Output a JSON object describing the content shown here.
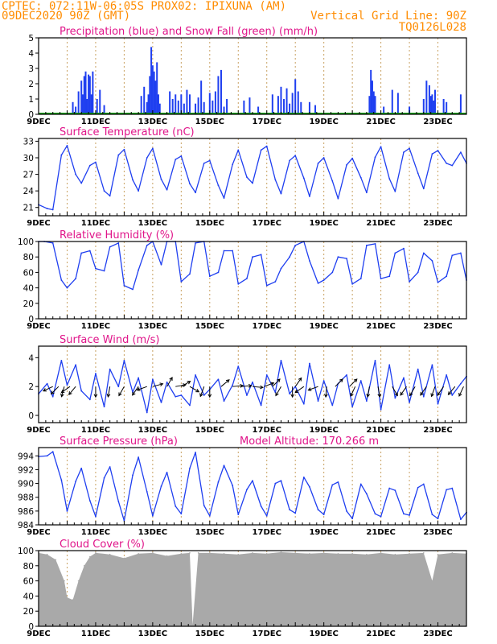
{
  "header": {
    "line1": "CPTEC:   072:11W-06:05S   PROX02: IPIXUNA (AM)",
    "line2_left": "09DEC2020 90Z (GMT)",
    "line2_right": "Vertical Grid Line: 90Z",
    "line3_right": "TQ0126L028"
  },
  "colors": {
    "header": "#ff8c00",
    "title": "#e0158a",
    "series_line": "#1f3ff0",
    "precip_bar": "#1f3ff0",
    "snow_line": "#00a000",
    "cloud_fill": "#a9a9a9",
    "grid": "#c8a060"
  },
  "chart_data": [
    {
      "id": "precip",
      "type": "bar",
      "title": "Precipitation (blue) and Snow Fall (green) (mm/h)",
      "x_labels": [
        "9DEC",
        "11DEC",
        "13DEC",
        "15DEC",
        "17DEC",
        "19DEC",
        "21DEC",
        "23DEC"
      ],
      "ylim": [
        0,
        5
      ],
      "yticks": [
        0,
        1,
        2,
        3,
        4,
        5
      ],
      "days": [
        9,
        24
      ],
      "series": [
        {
          "name": "Precipitation",
          "x": [
            10.2,
            10.3,
            10.4,
            10.5,
            10.55,
            10.6,
            10.65,
            10.7,
            10.75,
            10.8,
            10.85,
            10.9,
            11.05,
            11.15,
            11.3,
            12.6,
            12.7,
            12.8,
            12.85,
            12.9,
            12.95,
            13.0,
            13.05,
            13.1,
            13.15,
            13.2,
            13.25,
            13.6,
            13.7,
            13.8,
            13.9,
            14.0,
            14.1,
            14.2,
            14.3,
            14.5,
            14.6,
            14.7,
            14.8,
            15.0,
            15.1,
            15.2,
            15.3,
            15.4,
            15.5,
            15.6,
            16.2,
            16.4,
            16.7,
            17.2,
            17.4,
            17.5,
            17.6,
            17.7,
            17.8,
            17.9,
            18.0,
            18.1,
            18.2,
            18.5,
            18.7,
            20.6,
            20.65,
            20.7,
            20.75,
            20.8,
            21.1,
            21.4,
            21.6,
            22.0,
            22.5,
            22.6,
            22.7,
            22.75,
            22.8,
            22.85,
            22.9,
            23.2,
            23.3,
            23.8
          ],
          "values": [
            0.8,
            0.5,
            1.5,
            2.2,
            1.3,
            2.5,
            2.8,
            1.0,
            2.6,
            2.5,
            1.3,
            2.8,
            1.0,
            1.6,
            0.6,
            1.2,
            1.8,
            0.8,
            1.3,
            2.5,
            4.4,
            3.2,
            2.8,
            2.2,
            3.4,
            1.3,
            0.7,
            1.5,
            1.0,
            1.3,
            0.9,
            1.3,
            0.7,
            1.6,
            1.3,
            0.7,
            1.1,
            2.2,
            0.8,
            1.4,
            0.9,
            1.5,
            2.5,
            2.9,
            0.5,
            1.0,
            0.9,
            1.1,
            0.5,
            1.3,
            1.2,
            1.8,
            1.0,
            1.7,
            0.7,
            1.4,
            2.3,
            1.5,
            0.8,
            0.8,
            0.6,
            1.2,
            2.9,
            2.2,
            1.5,
            1.2,
            0.5,
            1.6,
            1.4,
            0.5,
            1.0,
            2.2,
            1.9,
            1.2,
            1.3,
            0.9,
            1.6,
            1.0,
            0.8,
            1.3
          ]
        },
        {
          "name": "Snow Fall",
          "x": [
            9,
            24
          ],
          "values": [
            0,
            0
          ]
        }
      ]
    },
    {
      "id": "temp",
      "type": "line",
      "title": "Surface Temperature (nC)",
      "x_labels": [
        "9DEC",
        "11DEC",
        "13DEC",
        "15DEC",
        "17DEC",
        "19DEC",
        "21DEC",
        "23DEC"
      ],
      "ylim": [
        19.5,
        33.5
      ],
      "yticks": [
        21,
        24,
        27,
        30,
        33
      ],
      "days": [
        9,
        24
      ],
      "x": [
        9.0,
        9.3,
        9.5,
        9.8,
        10.0,
        10.3,
        10.5,
        10.8,
        11.0,
        11.3,
        11.5,
        11.8,
        12.0,
        12.3,
        12.5,
        12.8,
        13.0,
        13.3,
        13.5,
        13.8,
        14.0,
        14.3,
        14.5,
        14.8,
        15.0,
        15.3,
        15.5,
        15.8,
        16.0,
        16.3,
        16.5,
        16.8,
        17.0,
        17.3,
        17.5,
        17.8,
        18.0,
        18.3,
        18.5,
        18.8,
        19.0,
        19.3,
        19.5,
        19.8,
        20.0,
        20.3,
        20.5,
        20.8,
        21.0,
        21.3,
        21.5,
        21.8,
        22.0,
        22.3,
        22.5,
        22.8,
        23.0,
        23.3,
        23.5,
        23.8,
        24.0
      ],
      "values": [
        21.5,
        20.8,
        20.6,
        30.5,
        32.2,
        27.0,
        25.4,
        28.6,
        29.2,
        24.0,
        23.1,
        30.5,
        31.5,
        26.0,
        24.0,
        30.0,
        31.7,
        26.1,
        24.2,
        29.7,
        30.3,
        25.3,
        23.7,
        29.0,
        29.5,
        25.0,
        22.7,
        28.8,
        31.4,
        26.5,
        25.4,
        31.4,
        32.1,
        26.0,
        23.5,
        29.5,
        30.4,
        26.3,
        23.0,
        29.0,
        30.0,
        25.8,
        22.6,
        28.7,
        29.9,
        26.4,
        23.7,
        30.1,
        32.0,
        26.2,
        23.9,
        31.0,
        31.7,
        27.2,
        24.4,
        30.7,
        31.3,
        29.0,
        28.6,
        31.0,
        29.0
      ]
    },
    {
      "id": "rh",
      "type": "line",
      "title": "Relative Humidity (%)",
      "x_labels": [
        "9DEC",
        "11DEC",
        "13DEC",
        "15DEC",
        "17DEC",
        "19DEC",
        "21DEC",
        "23DEC"
      ],
      "ylim": [
        0,
        100
      ],
      "yticks": [
        0,
        20,
        40,
        60,
        80,
        100
      ],
      "days": [
        9,
        24
      ],
      "x": [
        9.0,
        9.2,
        9.5,
        9.8,
        10.0,
        10.3,
        10.5,
        10.8,
        11.0,
        11.3,
        11.5,
        11.8,
        12.0,
        12.3,
        12.5,
        12.8,
        13.0,
        13.3,
        13.5,
        13.8,
        14.0,
        14.3,
        14.5,
        14.8,
        15.0,
        15.3,
        15.5,
        15.8,
        16.0,
        16.3,
        16.5,
        16.8,
        17.0,
        17.3,
        17.5,
        17.8,
        18.0,
        18.3,
        18.5,
        18.8,
        19.0,
        19.3,
        19.5,
        19.8,
        20.0,
        20.3,
        20.5,
        20.8,
        21.0,
        21.3,
        21.5,
        21.8,
        22.0,
        22.3,
        22.5,
        22.8,
        23.0,
        23.3,
        23.5,
        23.8,
        24.0
      ],
      "values": [
        100,
        100,
        98,
        50,
        40,
        52,
        85,
        88,
        65,
        62,
        93,
        98,
        43,
        38,
        63,
        95,
        100,
        70,
        100,
        100,
        48,
        58,
        98,
        100,
        55,
        60,
        88,
        88,
        45,
        52,
        80,
        83,
        43,
        48,
        65,
        80,
        95,
        100,
        75,
        46,
        50,
        60,
        80,
        78,
        45,
        52,
        95,
        97,
        52,
        55,
        85,
        91,
        48,
        60,
        85,
        75,
        47,
        55,
        82,
        85,
        50
      ]
    },
    {
      "id": "wind",
      "type": "line",
      "title": "Surface Wind (m/s)",
      "x_labels": [
        "9DEC",
        "11DEC",
        "13DEC",
        "15DEC",
        "17DEC",
        "19DEC",
        "21DEC",
        "23DEC"
      ],
      "ylim": [
        -0.5,
        4.8
      ],
      "yticks": [
        0,
        2,
        4
      ],
      "days": [
        9,
        24
      ],
      "x": [
        9.0,
        9.3,
        9.5,
        9.8,
        10.0,
        10.3,
        10.5,
        10.8,
        11.0,
        11.3,
        11.5,
        11.8,
        12.0,
        12.3,
        12.5,
        12.8,
        13.0,
        13.3,
        13.5,
        13.8,
        14.0,
        14.3,
        14.5,
        14.8,
        15.0,
        15.3,
        15.5,
        15.8,
        16.0,
        16.3,
        16.5,
        16.8,
        17.0,
        17.3,
        17.5,
        17.8,
        18.0,
        18.3,
        18.5,
        18.8,
        19.0,
        19.3,
        19.5,
        19.8,
        20.0,
        20.3,
        20.5,
        20.8,
        21.0,
        21.3,
        21.5,
        21.8,
        22.0,
        22.3,
        22.5,
        22.8,
        23.0,
        23.3,
        23.5,
        23.8,
        24.0
      ],
      "values": [
        1.5,
        2.2,
        1.3,
        3.8,
        2.1,
        3.5,
        1.7,
        1.1,
        2.9,
        0.6,
        3.2,
        2.0,
        3.8,
        1.6,
        2.6,
        0.2,
        2.5,
        0.9,
        2.3,
        1.3,
        1.4,
        0.7,
        2.8,
        1.4,
        1.8,
        2.5,
        1.0,
        2.1,
        3.4,
        1.4,
        2.3,
        0.7,
        2.8,
        1.6,
        3.8,
        1.5,
        2.0,
        0.8,
        3.6,
        1.0,
        2.4,
        0.7,
        2.2,
        2.8,
        0.6,
        2.4,
        1.0,
        3.8,
        0.4,
        3.5,
        1.2,
        2.6,
        0.9,
        3.2,
        1.3,
        3.5,
        0.8,
        2.8,
        1.4,
        2.2,
        2.7
      ],
      "arrows": {
        "x": [
          9.5,
          9.7,
          9.9,
          10.1,
          10.3,
          11.0,
          11.5,
          12.0,
          12.5,
          12.8,
          13.0,
          13.5,
          13.8,
          14.0,
          14.3,
          14.8,
          15.0,
          15.4,
          15.8,
          16.1,
          16.5,
          16.9,
          17.2,
          17.5,
          17.9,
          18.0,
          18.3,
          18.8,
          19.1,
          19.4,
          19.9,
          20.1,
          20.6,
          20.9,
          21.4,
          21.9,
          22.2,
          22.6,
          22.9,
          23.2,
          23.6,
          23.9
        ],
        "angle_deg": [
          205,
          225,
          255,
          215,
          230,
          270,
          260,
          240,
          235,
          200,
          15,
          60,
          10,
          30,
          330,
          250,
          270,
          40,
          5,
          5,
          355,
          20,
          45,
          240,
          270,
          55,
          215,
          200,
          265,
          45,
          45,
          245,
          260,
          280,
          300,
          235,
          240,
          235,
          250,
          235,
          230,
          245
        ]
      }
    },
    {
      "id": "pressure",
      "type": "line",
      "title": "Surface Pressure (hPa)",
      "subtitle": "Model Altitude: 170.266 m",
      "x_labels": [
        "9DEC",
        "11DEC",
        "13DEC",
        "15DEC",
        "17DEC",
        "19DEC",
        "21DEC",
        "23DEC"
      ],
      "ylim": [
        984,
        995.2
      ],
      "yticks": [
        984,
        986,
        988,
        990,
        992,
        994
      ],
      "days": [
        9,
        24
      ],
      "x": [
        9.0,
        9.3,
        9.5,
        9.8,
        10.0,
        10.3,
        10.5,
        10.8,
        11.0,
        11.3,
        11.5,
        11.8,
        12.0,
        12.3,
        12.5,
        12.8,
        13.0,
        13.3,
        13.5,
        13.8,
        14.0,
        14.3,
        14.5,
        14.8,
        15.0,
        15.3,
        15.5,
        15.8,
        16.0,
        16.3,
        16.5,
        16.8,
        17.0,
        17.3,
        17.5,
        17.8,
        18.0,
        18.3,
        18.5,
        18.8,
        19.0,
        19.3,
        19.5,
        19.8,
        20.0,
        20.3,
        20.5,
        20.8,
        21.0,
        21.3,
        21.5,
        21.8,
        22.0,
        22.3,
        22.5,
        22.8,
        23.0,
        23.3,
        23.5,
        23.8,
        24.0
      ],
      "values": [
        993.9,
        994.0,
        994.6,
        990.5,
        986.0,
        990.3,
        992.2,
        987.5,
        985.2,
        990.8,
        992.4,
        987.4,
        984.6,
        991.2,
        993.8,
        988.8,
        985.3,
        989.6,
        991.6,
        986.7,
        985.6,
        992.2,
        994.5,
        986.8,
        985.3,
        990.2,
        992.6,
        989.7,
        985.5,
        989.1,
        990.4,
        986.7,
        985.3,
        990.0,
        990.4,
        986.2,
        985.7,
        990.9,
        989.5,
        986.2,
        985.5,
        989.8,
        990.2,
        986.0,
        984.9,
        989.9,
        988.5,
        985.6,
        985.2,
        989.3,
        989.0,
        985.6,
        985.4,
        989.4,
        989.9,
        985.5,
        984.9,
        989.1,
        989.3,
        984.8,
        985.8
      ]
    },
    {
      "id": "cloud",
      "type": "area",
      "title": "Cloud Cover (%)",
      "x_labels": [
        "9DEC",
        "11DEC",
        "13DEC",
        "15DEC",
        "17DEC",
        "19DEC",
        "21DEC",
        "23DEC"
      ],
      "ylim": [
        0,
        100
      ],
      "yticks": [
        0,
        20,
        40,
        60,
        80,
        100
      ],
      "days": [
        9,
        24
      ],
      "x": [
        9.0,
        9.3,
        9.6,
        9.9,
        10.0,
        10.2,
        10.4,
        10.6,
        10.8,
        11.0,
        11.5,
        12.0,
        12.5,
        13.0,
        13.5,
        14.0,
        14.3,
        14.4,
        14.6,
        15.0,
        15.5,
        16.0,
        16.5,
        17.0,
        17.5,
        18.0,
        18.5,
        19.0,
        19.5,
        20.0,
        20.5,
        21.0,
        21.5,
        22.0,
        22.5,
        22.8,
        23.0,
        23.5,
        24.0
      ],
      "values": [
        97,
        95,
        88,
        60,
        38,
        35,
        60,
        80,
        92,
        97,
        95,
        90,
        96,
        97,
        93,
        96,
        97,
        2,
        97,
        97,
        96,
        95,
        97,
        96,
        98,
        97,
        96,
        97,
        96,
        96,
        95,
        97,
        95,
        96,
        97,
        60,
        95,
        97,
        96
      ]
    }
  ]
}
